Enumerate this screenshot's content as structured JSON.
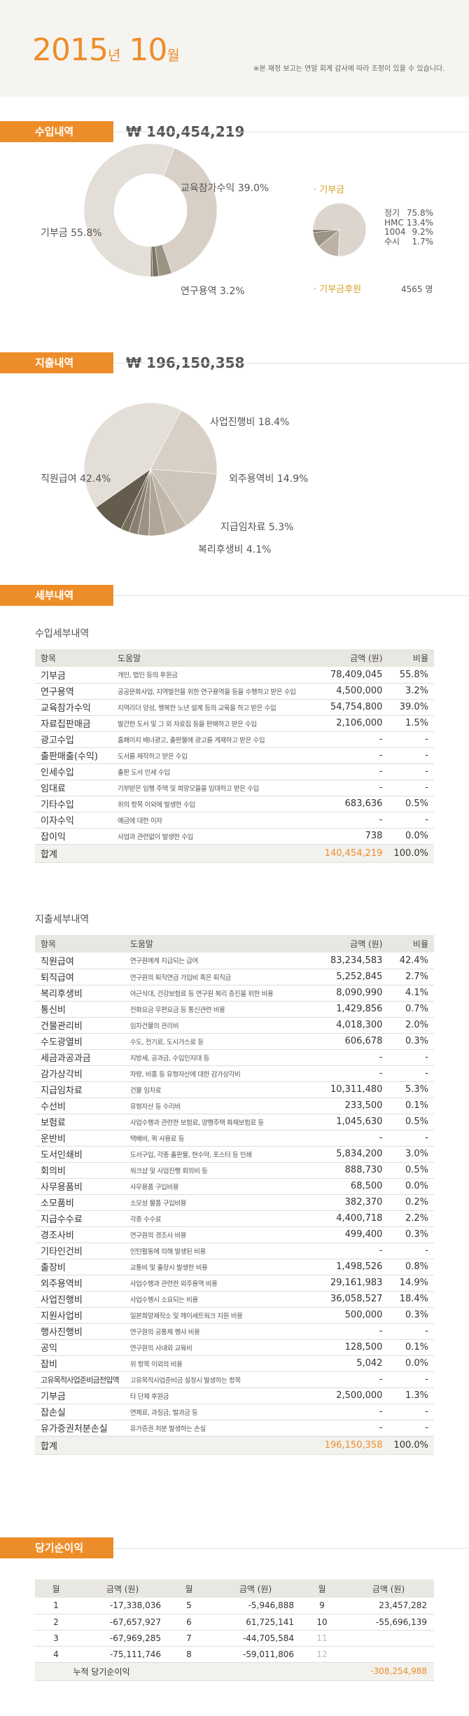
{
  "header": {
    "year": "2015",
    "year_suffix": "년",
    "month": "10",
    "month_suffix": "월",
    "note": "※본 재정 보고는 연말 회계 감사에 따라 조정이 있을 수 있습니다."
  },
  "income": {
    "tab": "수입내역",
    "total": "₩ 140,454,219",
    "labels": {
      "education": "교육참가수익 39.0%",
      "donation": "기부금 55.8%",
      "research": "연구용역 3.2%"
    },
    "chart_data": {
      "type": "pie",
      "title": "수입내역",
      "categories": [
        "기부금",
        "교육참가수익",
        "연구용역",
        "자료집판매금",
        "기타수입",
        "잡이익"
      ],
      "values": [
        55.8,
        39.0,
        3.2,
        1.5,
        0.5,
        0.0
      ]
    },
    "colors": {
      "donation": "#e4ded8",
      "education": "#d8d0c7",
      "research": "#9b9384",
      "rest": "#7c7466"
    },
    "donor": {
      "title": "· 기부금",
      "chart_data": {
        "type": "pie",
        "categories": [
          "정기",
          "HMC",
          "1004",
          "수시"
        ],
        "values": [
          75.8,
          13.4,
          9.2,
          1.7
        ]
      },
      "legend": [
        {
          "name": "정기",
          "pct": "75.8%"
        },
        {
          "name": "HMC",
          "pct": "13.4%"
        },
        {
          "name": "1004",
          "pct": "9.2%"
        },
        {
          "name": "수시",
          "pct": "1.7%"
        }
      ],
      "sponsor_label": "· 기부금후원",
      "sponsor_value": "4565 명"
    }
  },
  "expense": {
    "tab": "지출내역",
    "total": "₩ 196,150,358",
    "labels": {
      "project": "사업진행비 18.4%",
      "outsource": "외주용역비 14.9%",
      "payment": "지급임차료 5.3%",
      "welfare": "복리후생비 4.1%",
      "salary": "직원급여 42.4%"
    },
    "chart_data": {
      "type": "pie",
      "title": "지출내역",
      "categories": [
        "직원급여",
        "사업진행비",
        "외주용역비",
        "지급임차료",
        "복리후생비",
        "퇴직급여",
        "지급수수료",
        "건물관리비",
        "기타"
      ],
      "values": [
        42.4,
        18.4,
        14.9,
        5.3,
        4.1,
        2.7,
        2.2,
        2.0,
        8.0
      ]
    },
    "colors": {
      "salary": "#e4ded8",
      "project": "#d8d0c7",
      "outsource": "#cfc6bb",
      "payment": "#c1b7a9",
      "welfare": "#b0a596",
      "rest1": "#9c9283",
      "rest2": "#8a8070",
      "rest3": "#776d5e",
      "rest4": "#655c4e"
    }
  },
  "details": {
    "tab": "세부내역",
    "income_title": "수입세부내역",
    "columns": [
      "항목",
      "도움말",
      "금액 (원)",
      "비율"
    ],
    "income_rows": [
      {
        "item": "기부금",
        "desc": "개인, 법인 등의 후원금",
        "amount": "78,409,045",
        "ratio": "55.8%"
      },
      {
        "item": "연구용역",
        "desc": "공공문화사업, 지역발전을 위한 연구용역을 등을 수행하고 받은 수입",
        "amount": "4,500,000",
        "ratio": "3.2%"
      },
      {
        "item": "교육참가수익",
        "desc": "지역리더 양성, 행복한 노년 설계 등의 교육을 하고 받은 수입",
        "amount": "54,754,800",
        "ratio": "39.0%"
      },
      {
        "item": "자료집판매금",
        "desc": "발간한 도서 및 그 외 자료집 등을 판매하고 받은 수입",
        "amount": "2,106,000",
        "ratio": "1.5%"
      },
      {
        "item": "광고수입",
        "desc": "홈페이지 배너광고, 출판물에 광고를 게재하고 받은 수입",
        "amount": "-",
        "ratio": "-"
      },
      {
        "item": "출판매출(수익)",
        "desc": "도서를 제작하고 받은 수입",
        "amount": "-",
        "ratio": "-"
      },
      {
        "item": "인세수입",
        "desc": "출판 도서 인세 수입",
        "amount": "-",
        "ratio": "-"
      },
      {
        "item": "임대료",
        "desc": "기부받은 임행 주택 및 희망모을을 임대하고 받은 수입",
        "amount": "-",
        "ratio": "-"
      },
      {
        "item": "기타수입",
        "desc": "위의 항목 이외에 발생한 수입",
        "amount": "683,636",
        "ratio": "0.5%"
      },
      {
        "item": "이자수익",
        "desc": "예금에 대한 이자",
        "amount": "-",
        "ratio": "-"
      },
      {
        "item": "잡이익",
        "desc": "사업과 관련없이 발생한 수입",
        "amount": "738",
        "ratio": "0.0%"
      }
    ],
    "income_sum": {
      "item": "합계",
      "amount": "140,454,219",
      "ratio": "100.0%"
    },
    "expense_title": "지출세부내역",
    "expense_rows": [
      {
        "item": "직원급여",
        "desc": "연구원에게 지급되는 급여",
        "amount": "83,234,583",
        "ratio": "42.4%"
      },
      {
        "item": "퇴직급여",
        "desc": "연구원의 퇴직연금 가입비 혹은 퇴직금",
        "amount": "5,252,845",
        "ratio": "2.7%"
      },
      {
        "item": "복리후생비",
        "desc": "야근식대, 건강보험료 등 연구원 복리 증진을 위한 비용",
        "amount": "8,090,990",
        "ratio": "4.1%"
      },
      {
        "item": "통신비",
        "desc": "전화요금 우편요금 등 통신관련 비용",
        "amount": "1,429,856",
        "ratio": "0.7%"
      },
      {
        "item": "건물관리비",
        "desc": "임차건물의 관리비",
        "amount": "4,018,300",
        "ratio": "2.0%"
      },
      {
        "item": "수도광열비",
        "desc": "수도, 전기료, 도시가스료 등",
        "amount": "606,678",
        "ratio": "0.3%"
      },
      {
        "item": "세금과공과금",
        "desc": "지방세, 공과금, 수입인지대 등",
        "amount": "-",
        "ratio": "-"
      },
      {
        "item": "감가상각비",
        "desc": "차량, 비품 등 유형자산에 대한 감가상각비",
        "amount": "-",
        "ratio": "-"
      },
      {
        "item": "지급임차료",
        "desc": "건물 임차료",
        "amount": "10,311,480",
        "ratio": "5.3%"
      },
      {
        "item": "수선비",
        "desc": "유형자산 등 수리비",
        "amount": "233,500",
        "ratio": "0.1%"
      },
      {
        "item": "보험료",
        "desc": "사업수행과 관련한 보험료, 양행주택 화재보험료 등",
        "amount": "1,045,630",
        "ratio": "0.5%"
      },
      {
        "item": "운반비",
        "desc": "택배비, 퀵 사용료 등",
        "amount": "-",
        "ratio": "-"
      },
      {
        "item": "도서인쇄비",
        "desc": "도서구입, 각종 출판물, 현수막, 포스터 등 인쇄",
        "amount": "5,834,200",
        "ratio": "3.0%"
      },
      {
        "item": "회의비",
        "desc": "워크샵 및 사업진행 회의비 등",
        "amount": "888,730",
        "ratio": "0.5%"
      },
      {
        "item": "사무용품비",
        "desc": "사무용품 구입비용",
        "amount": "68,500",
        "ratio": "0.0%"
      },
      {
        "item": "소모품비",
        "desc": "소모성 물품 구입비용",
        "amount": "382,370",
        "ratio": "0.2%"
      },
      {
        "item": "지급수수료",
        "desc": "각종 수수료",
        "amount": "4,400,718",
        "ratio": "2.2%"
      },
      {
        "item": "경조사비",
        "desc": "연구원의 경조사 비용",
        "amount": "499,400",
        "ratio": "0.3%"
      },
      {
        "item": "기타인건비",
        "desc": "인턴활동에 의해 발생된 비용",
        "amount": "-",
        "ratio": "-"
      },
      {
        "item": "출장비",
        "desc": "교통비 및 출장시 발생한 비용",
        "amount": "1,498,526",
        "ratio": "0.8%"
      },
      {
        "item": "외주용역비",
        "desc": "사업수행과 관련한 외주용역 비용",
        "amount": "29,161,983",
        "ratio": "14.9%"
      },
      {
        "item": "사업진행비",
        "desc": "사업수행시 소요되는 비용",
        "amount": "36,058,527",
        "ratio": "18.4%"
      },
      {
        "item": "지원사업비",
        "desc": "일본희망제작소 및 헤이세트워크 지원 비용",
        "amount": "500,000",
        "ratio": "0.3%"
      },
      {
        "item": "행사진행비",
        "desc": "연구원의 공통체 행사 비용",
        "amount": "-",
        "ratio": "-"
      },
      {
        "item": "공익",
        "desc": "연구원의 사내외 교육비",
        "amount": "128,500",
        "ratio": "0.1%"
      },
      {
        "item": "잡비",
        "desc": "위 항목 이외의 비용",
        "amount": "5,042",
        "ratio": "0.0%"
      },
      {
        "item": "고유목적사업준비금전입액",
        "desc": "고유목적사업준비금 설정시 발생하는 항목",
        "amount": "-",
        "ratio": "-"
      },
      {
        "item": "기부금",
        "desc": "타 단체 후원금",
        "amount": "2,500,000",
        "ratio": "1.3%"
      },
      {
        "item": "잡손실",
        "desc": "연체료, 과징금, 벌과금 등",
        "amount": "-",
        "ratio": "-"
      },
      {
        "item": "유가증권처분손실",
        "desc": "유가증권 처분 발생하는 손실",
        "amount": "-",
        "ratio": "-"
      }
    ],
    "expense_sum": {
      "item": "합계",
      "amount": "196,150,358",
      "ratio": "100.0%"
    }
  },
  "net_income": {
    "tab": "당기순이익",
    "columns": [
      "월",
      "금액 (원)",
      "월",
      "금액 (원)",
      "월",
      "금액 (원)"
    ],
    "rows": [
      [
        {
          "m": "1",
          "v": "-17,338,036"
        },
        {
          "m": "5",
          "v": "-5,946,888"
        },
        {
          "m": "9",
          "v": "23,457,282"
        }
      ],
      [
        {
          "m": "2",
          "v": "-67,657,927"
        },
        {
          "m": "6",
          "v": "61,725,141"
        },
        {
          "m": "10",
          "v": "-55,696,139"
        }
      ],
      [
        {
          "m": "3",
          "v": "-67,969,285"
        },
        {
          "m": "7",
          "v": "-44,705,584"
        },
        {
          "m": "11",
          "v": ""
        }
      ],
      [
        {
          "m": "4",
          "v": "-75,111,746"
        },
        {
          "m": "8",
          "v": "-59,011,806"
        },
        {
          "m": "12",
          "v": ""
        }
      ]
    ],
    "sum_label": "누적 당기순이익",
    "sum_value": "-308,254,988"
  }
}
